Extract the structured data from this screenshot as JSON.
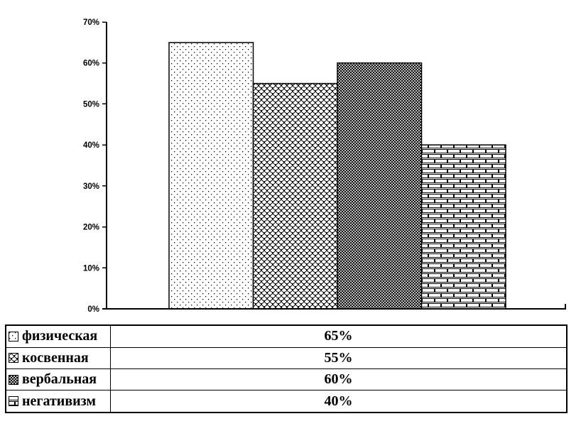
{
  "chart_data": {
    "type": "bar",
    "categories": [
      "физическая",
      "косвенная",
      "вербальная",
      "негативизм"
    ],
    "values": [
      65,
      55,
      60,
      40
    ],
    "title": "",
    "xlabel": "",
    "ylabel": "",
    "ylim": [
      0,
      70
    ],
    "ytick_step": 10,
    "ytick_labels": [
      "0%",
      "10%",
      "20%",
      "30%",
      "40%",
      "50%",
      "60%",
      "70%"
    ],
    "bar_patterns": [
      "dots",
      "scales",
      "crosshatch",
      "bricks"
    ],
    "bar_fill_base": "#ffffff",
    "bar_stroke": "#000000",
    "grid": false,
    "legend_position": "bottom-table"
  },
  "legend": {
    "rows": [
      {
        "label": "физическая",
        "value": "65%",
        "pattern": "dots"
      },
      {
        "label": "косвенная",
        "value": "55%",
        "pattern": "scales"
      },
      {
        "label": "вербальная",
        "value": "60%",
        "pattern": "crosshatch"
      },
      {
        "label": "негативизм",
        "value": "40%",
        "pattern": "bricks"
      }
    ]
  },
  "colors": {
    "background": "#ffffff",
    "axis": "#000000",
    "text": "#000000"
  }
}
